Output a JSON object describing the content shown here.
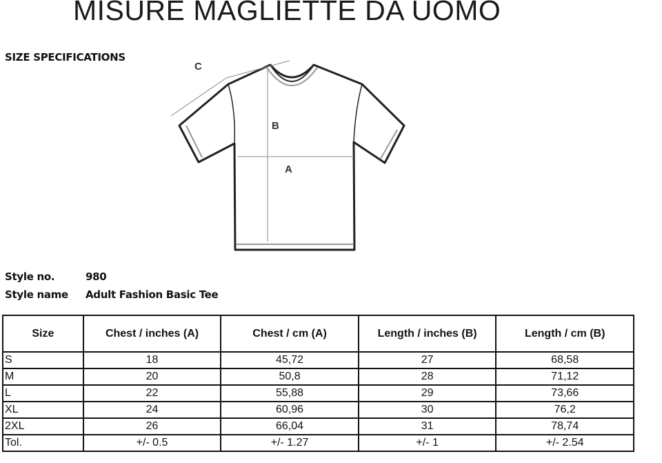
{
  "title": "MISURE MAGLIETTE DA UOMO",
  "subtitle": "SIZE SPECIFICATIONS",
  "diagram": {
    "labels": {
      "a": "A",
      "b": "B",
      "c": "C"
    }
  },
  "style": {
    "number_label": "Style no.",
    "number_value": "980",
    "name_label": "Style name",
    "name_value": "Adult Fashion Basic Tee"
  },
  "table": {
    "headers": [
      "Size",
      "Chest / inches (A)",
      "Chest / cm (A)",
      "Length / inches (B)",
      "Length / cm (B)"
    ],
    "rows": [
      [
        "S",
        "18",
        "45,72",
        "27",
        "68,58"
      ],
      [
        "M",
        "20",
        "50,8",
        "28",
        "71,12"
      ],
      [
        "L",
        "22",
        "55,88",
        "29",
        "73,66"
      ],
      [
        "XL",
        "24",
        "60,96",
        "30",
        "76,2"
      ],
      [
        "2XL",
        "26",
        "66,04",
        "31",
        "78,74"
      ],
      [
        "Tol.",
        "+/- 0.5",
        "+/- 1.27",
        "+/- 1",
        "+/- 2.54"
      ]
    ]
  }
}
